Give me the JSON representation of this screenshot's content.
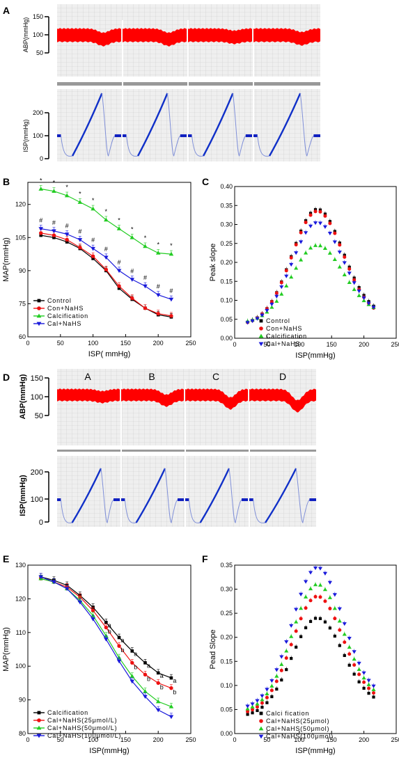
{
  "panels": {
    "A": {
      "letter": "A",
      "abp_label": "ABP(mmHg)",
      "abp_ticks": [
        "150",
        "100",
        "50"
      ],
      "isp_label": "ISP(mmHg)",
      "isp_ticks": [
        "200",
        "100",
        "0"
      ]
    },
    "D": {
      "letter": "D",
      "abp_label": "ABP(mmHg)",
      "abp_ticks": [
        "150",
        "100",
        "50"
      ],
      "isp_label": "ISP(mmHg)",
      "isp_ticks": [
        "200",
        "100",
        "0"
      ],
      "segment_labels": [
        "A",
        "B",
        "C",
        "D"
      ]
    }
  },
  "chart_data": [
    {
      "panel": "B",
      "type": "line",
      "xlabel": "ISP(  mmHg)",
      "ylabel": "MAP(mmHg)",
      "xlim": [
        0,
        250
      ],
      "ylim": [
        60,
        130
      ],
      "xticks": [
        0,
        50,
        100,
        150,
        200,
        250
      ],
      "yticks": [
        60,
        75,
        90,
        105,
        120
      ],
      "x": [
        20,
        40,
        60,
        80,
        100,
        120,
        140,
        160,
        180,
        200,
        220
      ],
      "legend_position": "bottom-left",
      "series": [
        {
          "name": "Control",
          "color": "#000000",
          "marker": "square",
          "values": [
            106,
            105,
            103,
            100,
            95.5,
            90,
            82,
            77,
            73,
            70,
            69
          ]
        },
        {
          "name": "Con+NaHS",
          "color": "#ee1111",
          "marker": "circle",
          "values": [
            107,
            106,
            104,
            100.5,
            96.5,
            90.5,
            83,
            77.5,
            73,
            70.5,
            69.5
          ]
        },
        {
          "name": "Calcification",
          "color": "#22cc22",
          "marker": "triangle-up",
          "values": [
            127,
            126,
            124,
            121,
            118,
            113,
            109,
            105,
            101,
            98,
            97.5
          ]
        },
        {
          "name": "Cal+NaHS",
          "color": "#1a1adb",
          "marker": "triangle-down",
          "values": [
            109,
            108,
            106.5,
            104,
            100,
            96,
            90,
            86,
            83,
            79,
            77
          ]
        }
      ],
      "annotations": [
        {
          "series": 2,
          "text": "*"
        },
        {
          "series": 3,
          "text": "#"
        }
      ]
    },
    {
      "panel": "C",
      "type": "scatter",
      "xlabel": "ISP(mmHg)",
      "ylabel": "Peak slope",
      "xlim": [
        0,
        250
      ],
      "ylim": [
        0,
        0.4
      ],
      "xticks": [
        0,
        50,
        100,
        150,
        200,
        250
      ],
      "yticks": [
        "0.00",
        "0.05",
        "0.10",
        "0.15",
        "0.20",
        "0.25",
        "0.30",
        "0.35",
        "0.40"
      ],
      "legend_position": "bottom-center",
      "series": [
        {
          "name": "Control",
          "color": "#000000",
          "marker": "square",
          "peak": 0.34,
          "start": 0.035,
          "end": 0.06
        },
        {
          "name": "Con+NaHS",
          "color": "#ee1111",
          "marker": "circle",
          "peak": 0.335,
          "start": 0.035,
          "end": 0.055
        },
        {
          "name": "Calcification",
          "color": "#22cc22",
          "marker": "triangle-up",
          "peak": 0.245,
          "start": 0.04,
          "end": 0.065
        },
        {
          "name": "Cal+NaHS",
          "color": "#1a1adb",
          "marker": "triangle-down",
          "peak": 0.305,
          "start": 0.035,
          "end": 0.06
        }
      ]
    },
    {
      "panel": "E",
      "type": "line",
      "xlabel": "ISP(mmHg)",
      "ylabel": "MAP(mmHg)",
      "xlim": [
        0,
        250
      ],
      "ylim": [
        80,
        130
      ],
      "xticks": [
        0,
        50,
        100,
        150,
        200,
        250
      ],
      "yticks": [
        80,
        90,
        100,
        110,
        120,
        130
      ],
      "x": [
        20,
        40,
        60,
        80,
        100,
        120,
        140,
        160,
        180,
        200,
        220
      ],
      "legend_position": "bottom-left",
      "series": [
        {
          "name": "Calcification",
          "color": "#000000",
          "marker": "square",
          "values": [
            126.5,
            125.5,
            124,
            121,
            117.5,
            113,
            108.5,
            104.5,
            101,
            98,
            96.5
          ]
        },
        {
          "name": "Cal+NaHS(25μmol/L)",
          "color": "#ee1111",
          "marker": "circle",
          "values": [
            126,
            125,
            123.5,
            120.5,
            116.5,
            111.5,
            106,
            101,
            97.5,
            95,
            93.5
          ]
        },
        {
          "name": "Cal+NaHS(50μmol/L)",
          "color": "#22cc22",
          "marker": "triangle-up",
          "values": [
            126,
            125,
            123,
            119.5,
            115,
            109,
            102.5,
            97,
            92.5,
            89.5,
            88
          ]
        },
        {
          "name": "Cal+NaHS(100μmol/L)",
          "color": "#1a1adb",
          "marker": "triangle-down",
          "values": [
            126.5,
            125,
            123,
            119,
            114,
            108,
            101.5,
            95.5,
            91,
            87,
            85
          ]
        }
      ],
      "annotations": [
        {
          "series": 0,
          "text": "a"
        },
        {
          "series": 1,
          "text": "b"
        }
      ]
    },
    {
      "panel": "F",
      "type": "scatter",
      "xlabel": "ISP(mmHg)",
      "ylabel": "Pead Slope",
      "xlim": [
        0,
        250
      ],
      "ylim": [
        0,
        0.35
      ],
      "xticks": [
        0,
        50,
        100,
        150,
        200,
        250
      ],
      "yticks": [
        "0.00",
        "0.05",
        "0.10",
        "0.15",
        "0.20",
        "0.25",
        "0.30",
        "0.35"
      ],
      "legend_position": "bottom-center",
      "series": [
        {
          "name": "Calci fication",
          "color": "#000000",
          "marker": "square",
          "peak": 0.24,
          "start": 0.035,
          "end": 0.06
        },
        {
          "name": "Cal+NaHS(25μmol)",
          "color": "#ee1111",
          "marker": "circle",
          "peak": 0.285,
          "start": 0.04,
          "end": 0.065
        },
        {
          "name": "Cal+NaHS(50μmol)",
          "color": "#22cc22",
          "marker": "triangle-up",
          "peak": 0.31,
          "start": 0.045,
          "end": 0.07
        },
        {
          "name": "Cal+NaHS(100μmol)",
          "color": "#1a1adb",
          "marker": "triangle-down",
          "peak": 0.345,
          "start": 0.05,
          "end": 0.075
        }
      ]
    }
  ]
}
